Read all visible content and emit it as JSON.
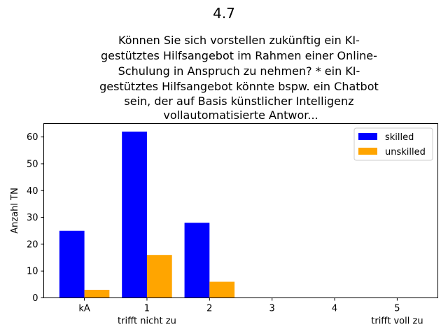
{
  "chart_data": {
    "type": "bar",
    "suptitle": "4.7",
    "title_lines": [
      "Können Sie sich vorstellen zukünftig ein KI-",
      "gestütztes Hilfsangebot im Rahmen einer Online-",
      "Schulung in Anspruch zu nehmen?   * ein KI-",
      "gestütztes Hilfsangebot könnte bspw. ein Chatbot",
      "sein, der auf Basis künstlicher Intelligenz",
      "vollautomatisierte Antwor..."
    ],
    "categories": [
      "kA",
      "1",
      "2",
      "3",
      "4",
      "5"
    ],
    "category_sublabels": [
      "",
      "trifft nicht zu",
      "",
      "",
      "",
      "trifft voll zu"
    ],
    "series": [
      {
        "name": "skilled",
        "color": "#0000ff",
        "values": [
          25,
          62,
          28,
          0,
          0,
          0
        ]
      },
      {
        "name": "unskilled",
        "color": "#ffa500",
        "values": [
          3,
          16,
          6,
          0,
          0,
          0
        ]
      }
    ],
    "ylabel": "Anzahl TN",
    "xlabel": "",
    "ylim": [
      0,
      65
    ],
    "yticks": [
      0,
      10,
      20,
      30,
      40,
      50,
      60
    ],
    "grid": false,
    "legend_position": "top-right"
  }
}
